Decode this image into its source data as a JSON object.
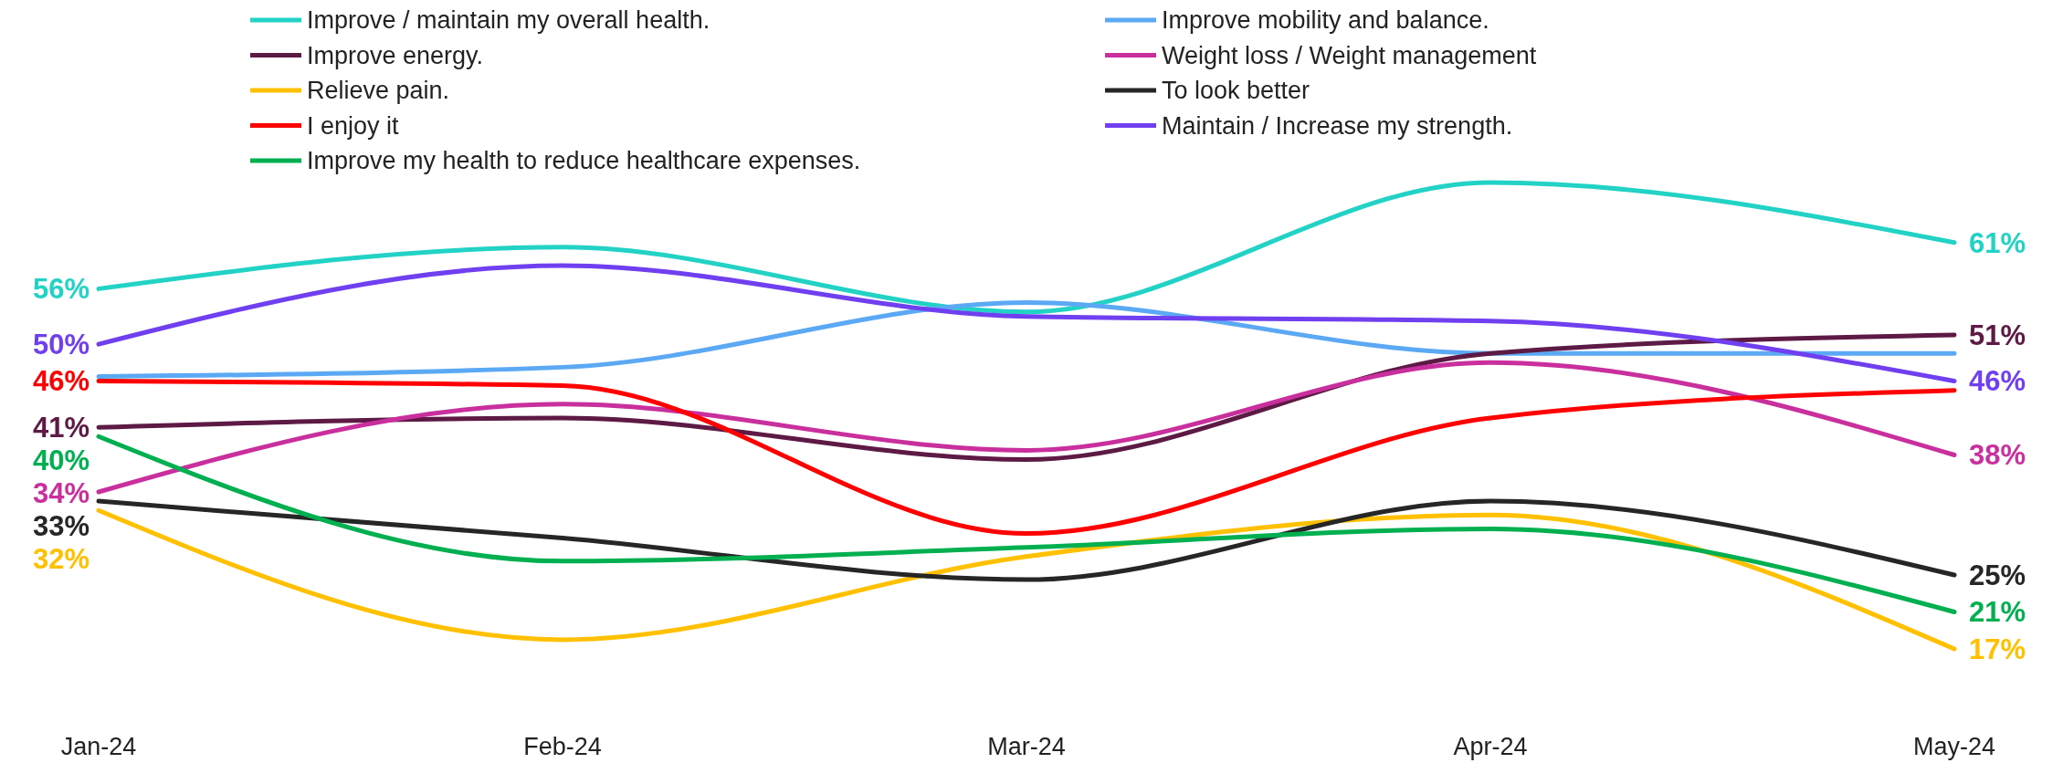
{
  "chart_data": {
    "type": "line",
    "categories": [
      "Jan-24",
      "Feb-24",
      "Mar-24",
      "Apr-24",
      "May-24"
    ],
    "tick_labels": "x",
    "legend": "top",
    "marker": "none",
    "line_style": "solid",
    "series": [
      {
        "name": "Improve / maintain my overall health.",
        "color": "#22d3c5",
        "values": [
          56,
          60.5,
          53.5,
          67.5,
          61
        ],
        "value_labels": [
          "56%",
          null,
          null,
          null,
          "61%"
        ]
      },
      {
        "name": "Improve mobility and balance.",
        "color": "#5ba8f5",
        "values": [
          46.5,
          47.5,
          54.5,
          49,
          49
        ],
        "value_labels": [
          null,
          null,
          null,
          null,
          null
        ]
      },
      {
        "name": "Improve energy.",
        "color": "#5c1a44",
        "values": [
          41,
          42,
          37.5,
          49,
          51
        ],
        "value_labels": [
          "41%",
          null,
          null,
          null,
          "51%"
        ]
      },
      {
        "name": "Weight loss / Weight management",
        "color": "#c9309e",
        "values": [
          34,
          43.5,
          38.5,
          48,
          38
        ],
        "value_labels": [
          "34%",
          null,
          null,
          null,
          "38%"
        ]
      },
      {
        "name": "Relieve pain.",
        "color": "#ffc000",
        "values": [
          32,
          18,
          27,
          31.5,
          17
        ],
        "value_labels": [
          "32%",
          null,
          null,
          null,
          "17%"
        ]
      },
      {
        "name": "To look better",
        "color": "#262626",
        "values": [
          33,
          29,
          24.5,
          33,
          25
        ],
        "value_labels": [
          "33%",
          null,
          null,
          null,
          "25%"
        ]
      },
      {
        "name": "I enjoy it",
        "color": "#ff0000",
        "values": [
          46,
          45.5,
          29.5,
          42,
          45
        ],
        "value_labels": [
          "46%",
          null,
          null,
          null,
          null
        ]
      },
      {
        "name": "Maintain / Increase my strength.",
        "color": "#7040f0",
        "values": [
          50,
          58.5,
          53,
          52.5,
          46
        ],
        "value_labels": [
          "50%",
          null,
          null,
          null,
          "46%"
        ]
      },
      {
        "name": "Improve my health to reduce healthcare expenses.",
        "color": "#00b050",
        "values": [
          40,
          26.5,
          28,
          30,
          21
        ],
        "value_labels": [
          "40%",
          null,
          null,
          null,
          "21%"
        ]
      }
    ]
  }
}
